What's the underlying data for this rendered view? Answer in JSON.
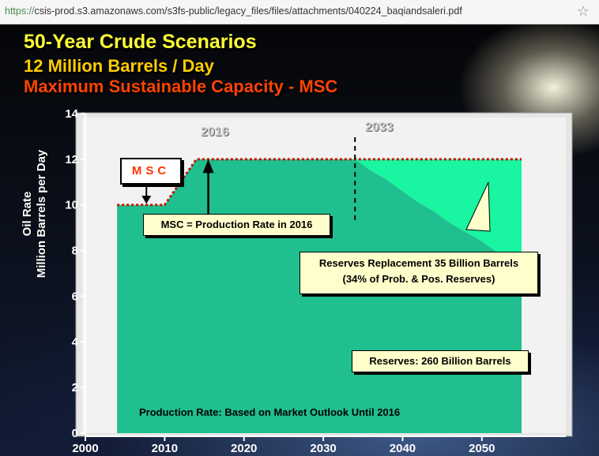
{
  "browser": {
    "url_protocol": "https://",
    "url_rest": "csis-prod.s3.amazonaws.com/s3fs-public/legacy_files/files/attachments/040224_baqiandsaleri.pdf"
  },
  "slide": {
    "title_line1": "50-Year Crude Scenarios",
    "title_line2": "12 Million Barrels / Day",
    "title_line3": "Maximum Sustainable Capacity - MSC",
    "ylabel_line1": "Oil Rate",
    "ylabel_line2": "Million Barrels per Day",
    "msc_box": "MSC",
    "year_2016": "2016",
    "year_2033": "2033",
    "callout_msc": "MSC = Production Rate in 2016",
    "callout_replacement_1": "Reserves Replacement 35 Billion Barrels",
    "callout_replacement_2": "(34% of Prob. & Pos. Reserves)",
    "callout_reserves": "Reserves: 260 Billion Barrels",
    "note_production": "Production Rate: Based on Market Outlook Until 2016"
  },
  "colors": {
    "reserves": "#1fbf8f",
    "replacement": "#19f5a0",
    "msc_line": "#cc1100",
    "plot_bg": "#e6e6e6"
  },
  "chart_data": {
    "type": "area",
    "xlim": [
      2000,
      2055
    ],
    "ylim": [
      0,
      14
    ],
    "x_ticks": [
      2000,
      2010,
      2020,
      2030,
      2040,
      2050
    ],
    "y_ticks": [
      0,
      2,
      4,
      6,
      8,
      10,
      12,
      14
    ],
    "series": [
      {
        "name": "Reserves: 260 Billion Barrels",
        "x": [
          2004,
          2010,
          2011,
          2012,
          2013,
          2014,
          2016,
          2034,
          2036,
          2038,
          2040,
          2042,
          2044,
          2046,
          2048,
          2050,
          2052,
          2054,
          2055
        ],
        "y": [
          10,
          10,
          10.5,
          11,
          11.5,
          12,
          12,
          12,
          11.5,
          11.1,
          10.6,
          10.1,
          9.7,
          9.2,
          8.8,
          8.4,
          7.9,
          7.4,
          7.3
        ]
      },
      {
        "name": "Reserves Replacement 35 Billion Barrels",
        "x": [
          2034,
          2055
        ],
        "y": [
          12,
          12
        ]
      }
    ]
  }
}
